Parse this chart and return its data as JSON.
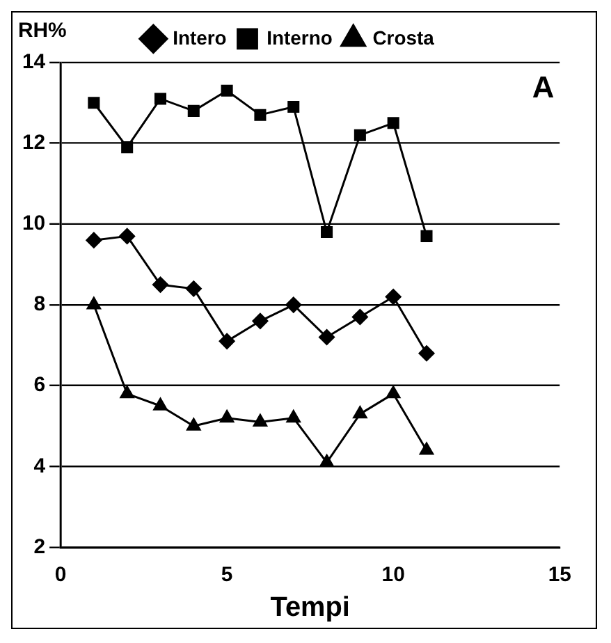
{
  "chart_data": {
    "type": "line",
    "xlabel": "Tempi",
    "ylabel": "RH%",
    "annotations": [
      "A"
    ],
    "x": [
      1,
      2,
      3,
      4,
      5,
      6,
      7,
      8,
      9,
      10,
      11
    ],
    "series": [
      {
        "name": "Intero",
        "color": "#000000",
        "marker": "diamond",
        "values": [
          9.6,
          9.7,
          8.5,
          8.4,
          7.1,
          7.6,
          8.0,
          7.2,
          7.7,
          8.2,
          6.8
        ]
      },
      {
        "name": "Interno",
        "color": "#000000",
        "marker": "square",
        "values": [
          13.0,
          11.9,
          13.1,
          12.8,
          13.3,
          12.7,
          12.9,
          9.8,
          12.2,
          12.5,
          9.7
        ]
      },
      {
        "name": "Crosta",
        "color": "#000000",
        "marker": "triangle",
        "values": [
          8.0,
          5.8,
          5.5,
          5.0,
          5.2,
          5.1,
          5.2,
          4.1,
          5.3,
          5.8,
          4.4
        ]
      }
    ],
    "xlim": [
      0,
      15
    ],
    "xticks": [
      0,
      5,
      10,
      15
    ],
    "ylim": [
      2,
      14
    ],
    "yticks": [
      2,
      4,
      6,
      8,
      10,
      12,
      14
    ],
    "grid": "y",
    "legend": "top",
    "line_style": "solid"
  }
}
